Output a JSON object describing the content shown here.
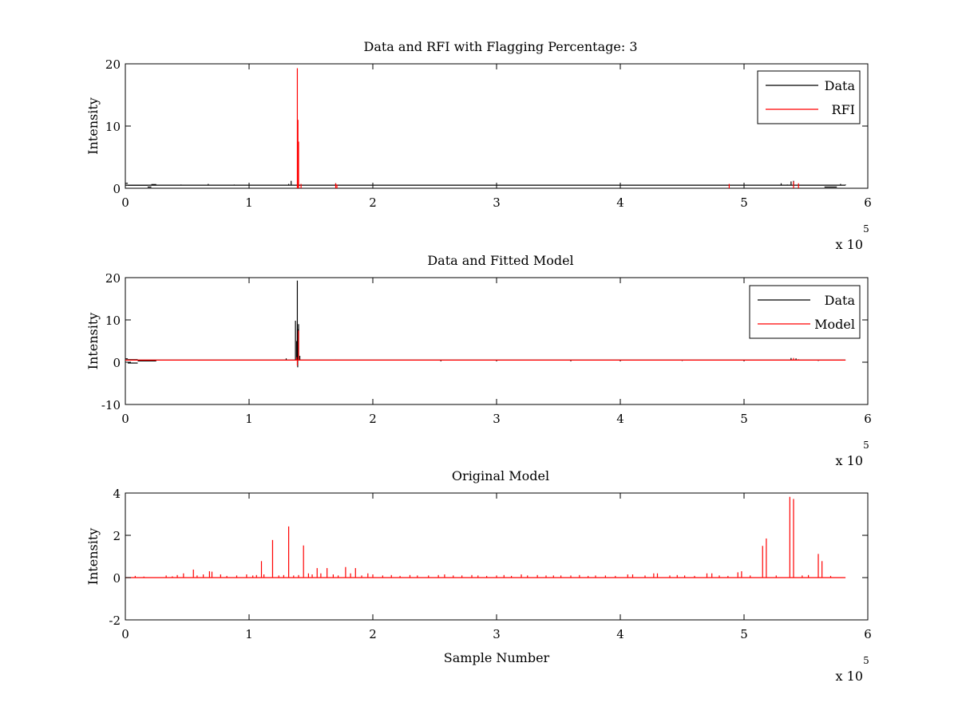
{
  "colors": {
    "data": "#000000",
    "rfi": "#ff0000",
    "model": "#ff0000",
    "axes": "#000000",
    "background": "#ffffff"
  },
  "exponent": {
    "base": "x 10",
    "power": "5"
  },
  "chart_data": [
    {
      "type": "line",
      "title": "Data and RFI with Flagging Percentage: 3",
      "xlabel": "",
      "ylabel": "Intensity",
      "xlim": [
        0,
        600000
      ],
      "ylim": [
        0,
        20
      ],
      "xticks": [
        "0",
        "1",
        "2",
        "3",
        "4",
        "5",
        "6"
      ],
      "yticks": [
        "0",
        "10",
        "20"
      ],
      "legend_position": "top-right",
      "series": [
        {
          "name": "Data",
          "color": "#000000",
          "baseline": 0.5,
          "segments": [
            [
              0,
              2000,
              0.8
            ],
            [
              2000,
              18000,
              0.5
            ],
            [
              18000,
              21000,
              0.2
            ],
            [
              21000,
              25000,
              0.6
            ],
            [
              565000,
              575000,
              0.2
            ]
          ],
          "spikes": [
            [
              45000,
              0.6
            ],
            [
              55000,
              0.55
            ],
            [
              67000,
              0.7
            ],
            [
              88000,
              0.6
            ],
            [
              132000,
              0.7
            ],
            [
              134000,
              1.2
            ],
            [
              170000,
              0.8
            ],
            [
              201000,
              0.55
            ],
            [
              530000,
              0.8
            ],
            [
              535000,
              0.6
            ],
            [
              538000,
              1.1
            ],
            [
              540000,
              1.2
            ],
            [
              578000,
              0.7
            ],
            [
              582000,
              0.6
            ]
          ]
        },
        {
          "name": "RFI",
          "color": "#ff0000",
          "spikes": [
            [
              139000,
              19.3
            ],
            [
              139500,
              11.0
            ],
            [
              140000,
              7.5
            ],
            [
              139200,
              1.2
            ],
            [
              142000,
              0.7
            ],
            [
              170000,
              0.8
            ],
            [
              171000,
              0.6
            ],
            [
              488000,
              0.7
            ],
            [
              540000,
              1.1
            ],
            [
              544000,
              0.8
            ]
          ]
        }
      ]
    },
    {
      "type": "line",
      "title": "Data and Fitted Model",
      "xlabel": "",
      "ylabel": "Intensity",
      "xlim": [
        0,
        600000
      ],
      "ylim": [
        -10,
        20
      ],
      "xticks": [
        "0",
        "1",
        "2",
        "3",
        "4",
        "5",
        "6"
      ],
      "yticks": [
        "-10",
        "0",
        "10",
        "20"
      ],
      "legend_position": "top-right",
      "series": [
        {
          "name": "Data",
          "color": "#000000",
          "baseline": 0.5,
          "segments": [
            [
              0,
              2000,
              0.8
            ],
            [
              2000,
              10000,
              0.6
            ],
            [
              2000,
              10000,
              -0.2
            ],
            [
              10000,
              25000,
              0.3
            ]
          ],
          "spikes": [
            [
              130000,
              0.9
            ],
            [
              137500,
              9.8
            ],
            [
              138500,
              5.0
            ],
            [
              139000,
              19.3
            ],
            [
              139500,
              7.8
            ],
            [
              140000,
              9.0
            ],
            [
              141000,
              1.5
            ],
            [
              139300,
              -1.2
            ],
            [
              255000,
              0.2
            ],
            [
              300000,
              0.2
            ],
            [
              360000,
              0.2
            ],
            [
              400000,
              0.2
            ],
            [
              450000,
              0.3
            ],
            [
              500000,
              0.2
            ],
            [
              538000,
              1.0
            ],
            [
              542000,
              0.9
            ],
            [
              560000,
              0.3
            ]
          ]
        },
        {
          "name": "Model",
          "color": "#ff0000",
          "baseline": 0.5,
          "spikes": [
            [
              138500,
              1.2
            ],
            [
              139000,
              -0.8
            ],
            [
              140000,
              7.5
            ],
            [
              170000,
              0.6
            ],
            [
              540000,
              1.0
            ],
            [
              544000,
              0.7
            ]
          ]
        }
      ]
    },
    {
      "type": "line",
      "title": "Original Model",
      "xlabel": "Sample Number",
      "ylabel": "Intensity",
      "xlim": [
        0,
        600000
      ],
      "ylim": [
        -2,
        4
      ],
      "xticks": [
        "0",
        "1",
        "2",
        "3",
        "4",
        "5",
        "6"
      ],
      "yticks": [
        "-2",
        "0",
        "2",
        "4"
      ],
      "legend_position": "none",
      "series": [
        {
          "name": "",
          "color": "#ff0000",
          "baseline": 0.0,
          "spikes": [
            [
              8000,
              0.08
            ],
            [
              15000,
              0.05
            ],
            [
              33000,
              0.1
            ],
            [
              38000,
              0.06
            ],
            [
              42000,
              0.12
            ],
            [
              47000,
              0.2
            ],
            [
              55000,
              0.38
            ],
            [
              58000,
              0.1
            ],
            [
              63000,
              0.15
            ],
            [
              68000,
              0.3
            ],
            [
              70000,
              0.28
            ],
            [
              77000,
              0.15
            ],
            [
              82000,
              0.08
            ],
            [
              90000,
              0.1
            ],
            [
              98000,
              0.15
            ],
            [
              103000,
              0.1
            ],
            [
              106000,
              0.12
            ],
            [
              110000,
              0.78
            ],
            [
              112000,
              0.15
            ],
            [
              119000,
              1.78
            ],
            [
              124000,
              0.1
            ],
            [
              128000,
              0.12
            ],
            [
              132000,
              2.42
            ],
            [
              136000,
              0.1
            ],
            [
              140000,
              0.12
            ],
            [
              144000,
              1.52
            ],
            [
              148000,
              0.2
            ],
            [
              151000,
              0.15
            ],
            [
              155000,
              0.45
            ],
            [
              158000,
              0.2
            ],
            [
              163000,
              0.45
            ],
            [
              168000,
              0.15
            ],
            [
              172000,
              0.1
            ],
            [
              178000,
              0.5
            ],
            [
              182000,
              0.2
            ],
            [
              186000,
              0.45
            ],
            [
              191000,
              0.1
            ],
            [
              196000,
              0.2
            ],
            [
              200000,
              0.15
            ],
            [
              208000,
              0.1
            ],
            [
              215000,
              0.12
            ],
            [
              222000,
              0.08
            ],
            [
              230000,
              0.12
            ],
            [
              236000,
              0.1
            ],
            [
              245000,
              0.1
            ],
            [
              253000,
              0.12
            ],
            [
              258000,
              0.15
            ],
            [
              265000,
              0.1
            ],
            [
              272000,
              0.1
            ],
            [
              280000,
              0.12
            ],
            [
              285000,
              0.1
            ],
            [
              292000,
              0.08
            ],
            [
              300000,
              0.1
            ],
            [
              306000,
              0.12
            ],
            [
              312000,
              0.08
            ],
            [
              320000,
              0.15
            ],
            [
              325000,
              0.1
            ],
            [
              333000,
              0.12
            ],
            [
              340000,
              0.1
            ],
            [
              346000,
              0.1
            ],
            [
              352000,
              0.1
            ],
            [
              360000,
              0.1
            ],
            [
              367000,
              0.12
            ],
            [
              374000,
              0.08
            ],
            [
              380000,
              0.1
            ],
            [
              388000,
              0.1
            ],
            [
              396000,
              0.08
            ],
            [
              406000,
              0.15
            ],
            [
              410000,
              0.15
            ],
            [
              420000,
              0.1
            ],
            [
              427000,
              0.2
            ],
            [
              430000,
              0.2
            ],
            [
              440000,
              0.1
            ],
            [
              446000,
              0.12
            ],
            [
              452000,
              0.1
            ],
            [
              460000,
              0.08
            ],
            [
              470000,
              0.2
            ],
            [
              474000,
              0.2
            ],
            [
              480000,
              0.1
            ],
            [
              487000,
              0.08
            ],
            [
              495000,
              0.25
            ],
            [
              498000,
              0.3
            ],
            [
              505000,
              0.1
            ],
            [
              515000,
              1.5
            ],
            [
              518000,
              1.85
            ],
            [
              526000,
              0.1
            ],
            [
              537000,
              3.82
            ],
            [
              540000,
              3.72
            ],
            [
              547000,
              0.1
            ],
            [
              552000,
              0.12
            ],
            [
              560000,
              1.12
            ],
            [
              563000,
              0.78
            ],
            [
              570000,
              0.08
            ]
          ]
        }
      ]
    }
  ]
}
